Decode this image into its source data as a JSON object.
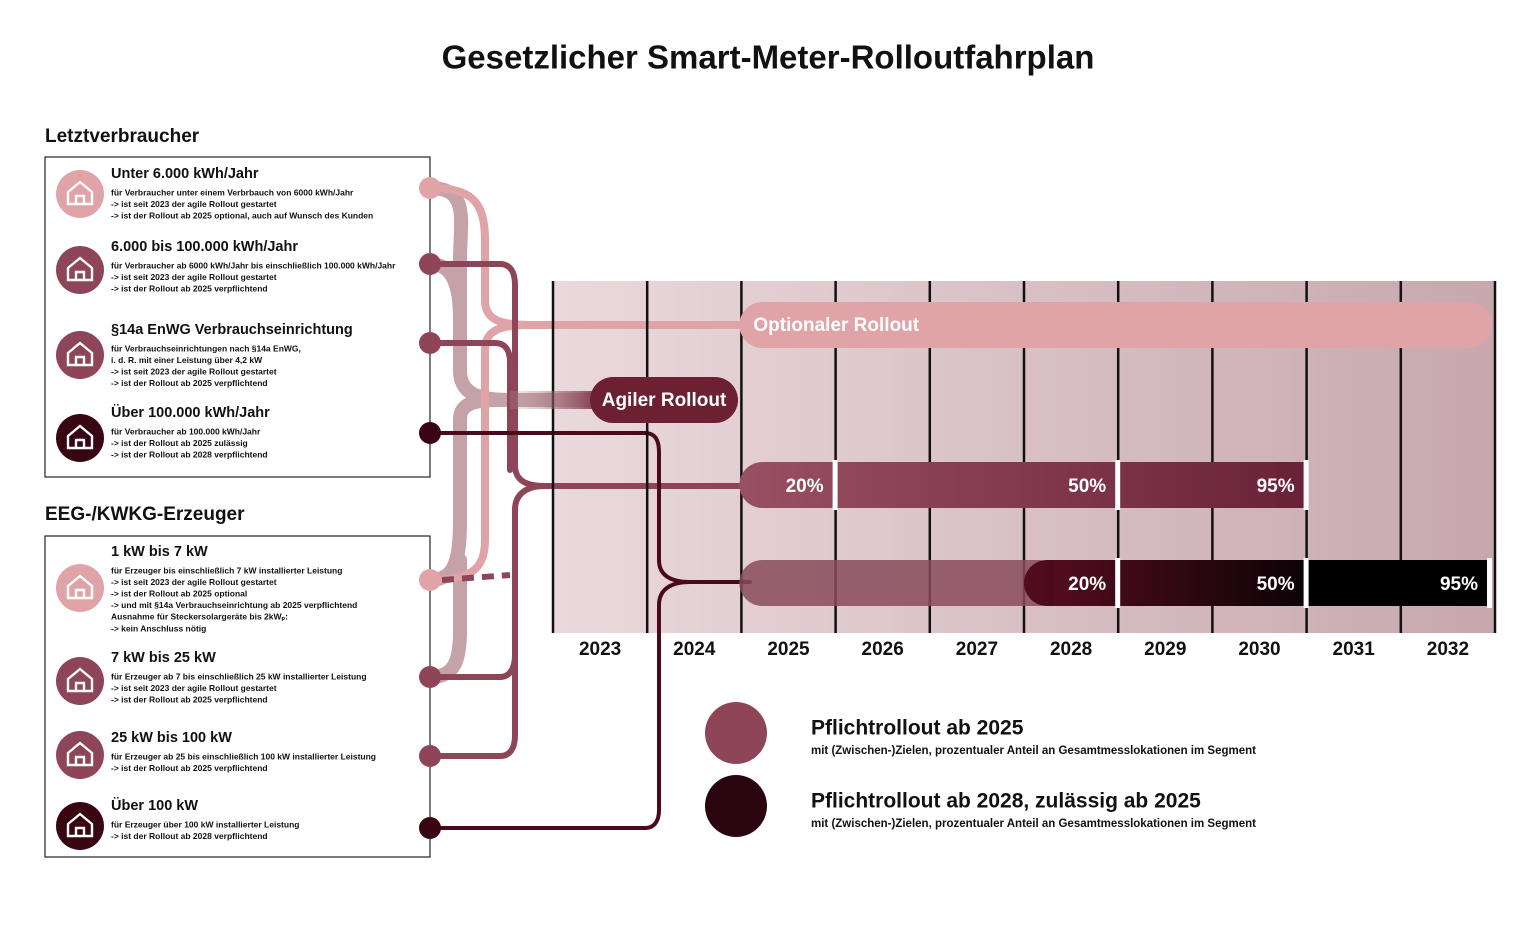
{
  "title": "Gesetzlicher Smart-Meter-Rolloutfahrplan",
  "groups": [
    {
      "heading": "Letztverbraucher",
      "items": [
        {
          "title": "Unter 6.000 kWh/Jahr",
          "lines": [
            "für Verbraucher unter einem Verbrbauch von 6000 kWh/Jahr",
            "-> ist seit 2023 der agile Rollout gestartet",
            "-> ist der Rollout ab 2025 optional, auch auf Wunsch des Kunden"
          ]
        },
        {
          "title": "6.000 bis 100.000 kWh/Jahr",
          "lines": [
            "für Verbraucher ab 6000 kWh/Jahr bis einschließlich 100.000 kWh/Jahr",
            "-> ist seit 2023 der agile Rollout gestartet",
            "-> ist der Rollout ab 2025 verpflichtend"
          ]
        },
        {
          "title": "§14a EnWG Verbrauchseinrichtung",
          "lines": [
            "für Verbrauchseinrichtungen nach §14a EnWG,",
            "i. d. R. mit einer Leistung über 4,2 kW",
            "-> ist seit 2023 der agile Rollout gestartet",
            "-> ist der Rollout ab 2025 verpflichtend"
          ]
        },
        {
          "title": "Über 100.000 kWh/Jahr",
          "lines": [
            "für Verbraucher ab 100.000 kWh/Jahr",
            "-> ist der Rollout ab 2025 zulässig",
            "-> ist der Rollout ab 2028 verpflichtend"
          ]
        }
      ]
    },
    {
      "heading": "EEG-/KWKG-Erzeuger",
      "items": [
        {
          "title": "1 kW bis 7 kW",
          "lines": [
            "für Erzeuger bis einschließlich 7 kW installierter Leistung",
            "-> ist seit 2023 der agile Rollout gestartet",
            "-> ist der Rollout ab 2025 optional",
            "-> und mit §14a Verbrauchseinrichtung ab 2025 verpflichtend",
            "Ausnahme für Steckersolargeräte bis 2kWₚ:",
            "-> kein Anschluss nötig"
          ]
        },
        {
          "title": "7 kW bis 25 kW",
          "lines": [
            "für Erzeuger ab 7 bis einschließlich 25 kW installierter Leistung",
            "-> ist seit 2023 der agile Rollout gestartet",
            "-> ist der Rollout ab 2025 verpflichtend"
          ]
        },
        {
          "title": "25 kW bis 100 kW",
          "lines": [
            "für Erzeuger ab 25 bis einschließlich 100 kW installierter Leistung",
            "-> ist der Rollout ab 2025 verpflichtend"
          ]
        },
        {
          "title": "Über 100 kW",
          "lines": [
            "für Erzeuger über 100 kW installierter Leistung",
            "-> ist der Rollout ab 2028 verpflichtend"
          ]
        }
      ]
    }
  ],
  "timeline": {
    "years": [
      "2023",
      "2024",
      "2025",
      "2026",
      "2027",
      "2028",
      "2029",
      "2030",
      "2031",
      "2032"
    ],
    "optional_label": "Optionaler Rollout",
    "agile_label": "Agiler Rollout",
    "mandatory_2025_milestones": [
      "20%",
      "50%",
      "95%"
    ],
    "mandatory_2028_milestones": [
      "20%",
      "50%",
      "95%"
    ]
  },
  "legend": [
    {
      "title": "Pflichtrollout ab 2025",
      "subtitle": "mit (Zwischen-)Zielen, prozentualer Anteil an Gesamtmesslokationen im Segment"
    },
    {
      "title": "Pflichtrollout ab 2028, zulässig ab 2025",
      "subtitle": "mit (Zwischen-)Zielen, prozentualer Anteil an Gesamtmesslokationen im Segment"
    }
  ]
}
